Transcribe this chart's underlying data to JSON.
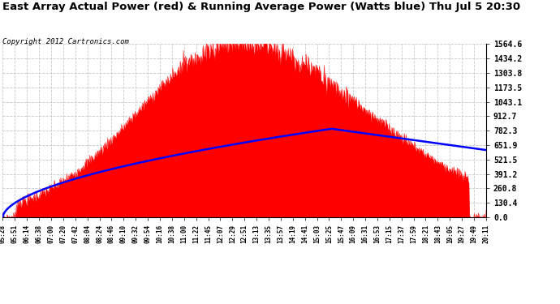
{
  "title": "East Array Actual Power (red) & Running Average Power (Watts blue) Thu Jul 5 20:30",
  "copyright": "Copyright 2012 Cartronics.com",
  "bg_color": "#ffffff",
  "plot_bg_color": "#ffffff",
  "grid_color": "#c8c8c8",
  "fill_color": "#ff0000",
  "line_color": "#ff0000",
  "avg_color": "#0000ff",
  "yticks": [
    0.0,
    130.4,
    260.8,
    391.2,
    521.5,
    651.9,
    782.3,
    912.7,
    1043.1,
    1173.5,
    1303.8,
    1434.2,
    1564.6
  ],
  "ymax": 1564.6,
  "xtick_labels": [
    "05:28",
    "05:51",
    "06:14",
    "06:38",
    "07:00",
    "07:20",
    "07:42",
    "08:04",
    "08:24",
    "08:46",
    "09:10",
    "09:32",
    "09:54",
    "10:16",
    "10:38",
    "11:00",
    "11:22",
    "11:45",
    "12:07",
    "12:29",
    "12:51",
    "13:13",
    "13:35",
    "13:57",
    "14:19",
    "14:41",
    "15:03",
    "15:25",
    "15:47",
    "16:09",
    "16:31",
    "16:53",
    "17:15",
    "17:37",
    "17:59",
    "18:21",
    "18:43",
    "19:05",
    "19:27",
    "19:49",
    "20:11"
  ]
}
